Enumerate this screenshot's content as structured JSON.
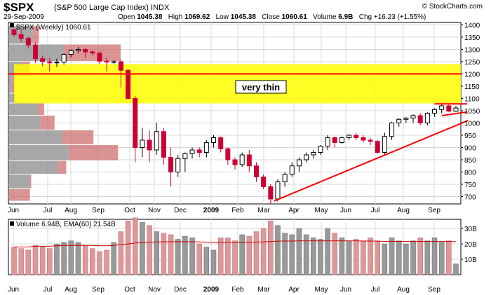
{
  "header": {
    "symbol": "$SPX",
    "name": "(S&P 500 Large Cap Index)",
    "exchange": "INDX",
    "date": "29-Sep-2009",
    "open_label": "Open",
    "open": "1045.38",
    "high_label": "High",
    "high": "1069.62",
    "low_label": "Low",
    "low": "1045.38",
    "close_label": "Close",
    "close": "1060.61",
    "volume_label": "Volume",
    "volume": "6.9B",
    "chg_label": "Chg",
    "chg": "+16.23 (+1.55%)",
    "brand": "© StockCharts.com"
  },
  "chart_data": [
    {
      "type": "candlestick",
      "title": "$SPX (Weekly) 1060.61",
      "x_tick_labels": [
        "Jun",
        "Jul",
        "Aug",
        "Sep",
        "Oct",
        "Nov",
        "Dec",
        "2009",
        "Feb",
        "Mar",
        "Apr",
        "May",
        "Jun",
        "Jul",
        "Aug",
        "Sep"
      ],
      "year_label": "2009",
      "y_ticks": [
        700,
        750,
        800,
        850,
        900,
        950,
        1000,
        1050,
        1100,
        1150,
        1200,
        1250,
        1300,
        1350,
        1400
      ],
      "ylim": [
        670,
        1410
      ],
      "ohlc_weekly": [
        [
          1380,
          1385,
          1350,
          1360
        ],
        [
          1360,
          1378,
          1330,
          1345
        ],
        [
          1345,
          1352,
          1305,
          1318
        ],
        [
          1318,
          1328,
          1245,
          1262
        ],
        [
          1262,
          1275,
          1232,
          1250
        ],
        [
          1250,
          1265,
          1210,
          1245
        ],
        [
          1245,
          1262,
          1228,
          1248
        ],
        [
          1248,
          1285,
          1238,
          1280
        ],
        [
          1280,
          1300,
          1268,
          1295
        ],
        [
          1295,
          1310,
          1285,
          1300
        ],
        [
          1300,
          1305,
          1265,
          1290
        ],
        [
          1290,
          1296,
          1275,
          1285
        ],
        [
          1285,
          1292,
          1240,
          1252
        ],
        [
          1252,
          1265,
          1210,
          1248
        ],
        [
          1248,
          1256,
          1240,
          1250
        ],
        [
          1250,
          1258,
          1145,
          1215
        ],
        [
          1215,
          1220,
          1100,
          1100
        ],
        [
          1100,
          1110,
          840,
          900
        ],
        [
          900,
          980,
          860,
          930
        ],
        [
          930,
          970,
          840,
          890
        ],
        [
          890,
          1000,
          870,
          965
        ],
        [
          965,
          980,
          830,
          860
        ],
        [
          860,
          900,
          740,
          800
        ],
        [
          800,
          870,
          780,
          855
        ],
        [
          855,
          880,
          800,
          875
        ],
        [
          875,
          900,
          855,
          890
        ],
        [
          890,
          900,
          860,
          880
        ],
        [
          880,
          930,
          860,
          920
        ],
        [
          920,
          950,
          900,
          940
        ],
        [
          940,
          945,
          880,
          895
        ],
        [
          895,
          900,
          830,
          850
        ],
        [
          850,
          860,
          810,
          830
        ],
        [
          830,
          880,
          820,
          870
        ],
        [
          870,
          890,
          800,
          825
        ],
        [
          825,
          840,
          760,
          780
        ],
        [
          780,
          790,
          730,
          740
        ],
        [
          740,
          750,
          670,
          690
        ],
        [
          690,
          770,
          680,
          760
        ],
        [
          760,
          800,
          740,
          790
        ],
        [
          790,
          840,
          780,
          825
        ],
        [
          825,
          860,
          800,
          850
        ],
        [
          850,
          880,
          840,
          870
        ],
        [
          870,
          890,
          855,
          880
        ],
        [
          880,
          910,
          870,
          905
        ],
        [
          905,
          950,
          890,
          940
        ],
        [
          940,
          945,
          900,
          920
        ],
        [
          920,
          945,
          915,
          940
        ],
        [
          940,
          955,
          930,
          950
        ],
        [
          950,
          960,
          930,
          940
        ],
        [
          940,
          950,
          920,
          930
        ],
        [
          930,
          940,
          910,
          925
        ],
        [
          925,
          930,
          875,
          880
        ],
        [
          880,
          960,
          870,
          945
        ],
        [
          945,
          1005,
          930,
          1000
        ],
        [
          1000,
          1020,
          985,
          1015
        ],
        [
          1015,
          1025,
          1000,
          1020
        ],
        [
          1020,
          1035,
          1000,
          1030
        ],
        [
          1030,
          1040,
          990,
          1000
        ],
        [
          1000,
          1045,
          990,
          1040
        ],
        [
          1040,
          1060,
          1025,
          1055
        ],
        [
          1055,
          1080,
          1040,
          1070
        ],
        [
          1070,
          1078,
          1045,
          1048
        ],
        [
          1048,
          1070,
          1045,
          1061
        ]
      ],
      "volume_by_price": [
        {
          "price_low": 1320,
          "price_high": 1395,
          "up_fraction": 0.18,
          "down_fraction": 0.05
        },
        {
          "price_low": 1250,
          "price_high": 1320,
          "up_fraction": 0.42,
          "down_fraction": 0.44
        },
        {
          "price_low": 1200,
          "price_high": 1250,
          "up_fraction": 0.1,
          "down_fraction": 0.06
        },
        {
          "price_low": 1120,
          "price_high": 1200,
          "up_fraction": 0.02,
          "down_fraction": 0.02
        },
        {
          "price_low": 1080,
          "price_high": 1120,
          "up_fraction": 0.04,
          "down_fraction": 0.01
        },
        {
          "price_low": 1030,
          "price_high": 1080,
          "up_fraction": 0.22,
          "down_fraction": 0.05
        },
        {
          "price_low": 970,
          "price_high": 1030,
          "up_fraction": 0.24,
          "down_fraction": 0.11
        },
        {
          "price_low": 910,
          "price_high": 970,
          "up_fraction": 0.41,
          "down_fraction": 0.24
        },
        {
          "price_low": 845,
          "price_high": 910,
          "up_fraction": 0.46,
          "down_fraction": 0.38
        },
        {
          "price_low": 790,
          "price_high": 845,
          "up_fraction": 0.38,
          "down_fraction": 0.06
        },
        {
          "price_low": 730,
          "price_high": 790,
          "up_fraction": 0.16,
          "down_fraction": 0.01
        },
        {
          "price_low": 680,
          "price_high": 730,
          "up_fraction": 0.0,
          "down_fraction": 0.16
        }
      ],
      "resistance_zone": {
        "low": 1080,
        "high": 1240,
        "color": "#ffff00"
      },
      "resistance_line": 1200,
      "annotation": "very thin",
      "trendline": {
        "from": [
          36.5,
          682
        ],
        "to": [
          63,
          1010
        ]
      },
      "short_line": {
        "from": [
          59,
          1078
        ],
        "to": [
          63,
          1078
        ]
      },
      "short_trend": {
        "from": [
          60,
          1030
        ],
        "to": [
          63,
          1045
        ]
      },
      "colors": {
        "up": "#ffffff",
        "down": "#cc0033",
        "line": "#ff0000",
        "vbp_up": "#999999",
        "vbp_down": "#cc6666",
        "zone": "#ffff00"
      }
    },
    {
      "type": "bar",
      "title": "Volume 6.94B, EMA(60) 21.54B",
      "y_ticks": [
        10,
        20,
        30
      ],
      "y_tick_labels": [
        "10B",
        "20B",
        "30B"
      ],
      "ylim": [
        0,
        36
      ],
      "values": [
        18,
        17,
        16,
        19,
        18,
        17,
        20,
        21,
        22,
        21,
        19,
        17,
        15,
        16,
        21,
        28,
        35,
        37,
        34,
        32,
        28,
        27,
        26,
        23,
        25,
        24,
        20,
        18,
        16,
        24,
        24,
        22,
        26,
        25,
        28,
        30,
        35,
        32,
        27,
        26,
        30,
        26,
        24,
        23,
        30,
        27,
        24,
        22,
        23,
        22,
        24,
        22,
        20,
        24,
        22,
        20,
        22,
        24,
        22,
        24,
        21,
        22,
        7
      ],
      "ema": [
        18,
        18,
        18,
        18.5,
        18.5,
        18.5,
        18.8,
        19,
        19,
        19,
        19,
        19,
        18.8,
        18.8,
        19,
        19.5,
        20,
        20.6,
        21,
        21.2,
        21.3,
        21.4,
        21.4,
        21.4,
        21.4,
        21.4,
        21.3,
        21.2,
        21,
        21,
        21,
        21,
        21.1,
        21.1,
        21.2,
        21.3,
        21.6,
        21.8,
        21.9,
        21.9,
        22,
        22,
        22,
        22,
        22,
        22,
        22,
        22,
        22,
        21.9,
        21.9,
        21.8,
        21.7,
        21.7,
        21.6,
        21.6,
        21.6,
        21.6,
        21.6,
        21.6,
        21.6,
        21.6,
        21.5
      ],
      "x_tick_labels": [
        "Jun",
        "Jul",
        "Aug",
        "Sep",
        "Oct",
        "Nov",
        "Dec",
        "2009",
        "Feb",
        "Mar",
        "Apr",
        "May",
        "Jun",
        "Jul",
        "Aug",
        "Sep"
      ],
      "colors": {
        "up": "#999999",
        "down": "#dd9999",
        "ema": "#cc0000"
      }
    }
  ]
}
